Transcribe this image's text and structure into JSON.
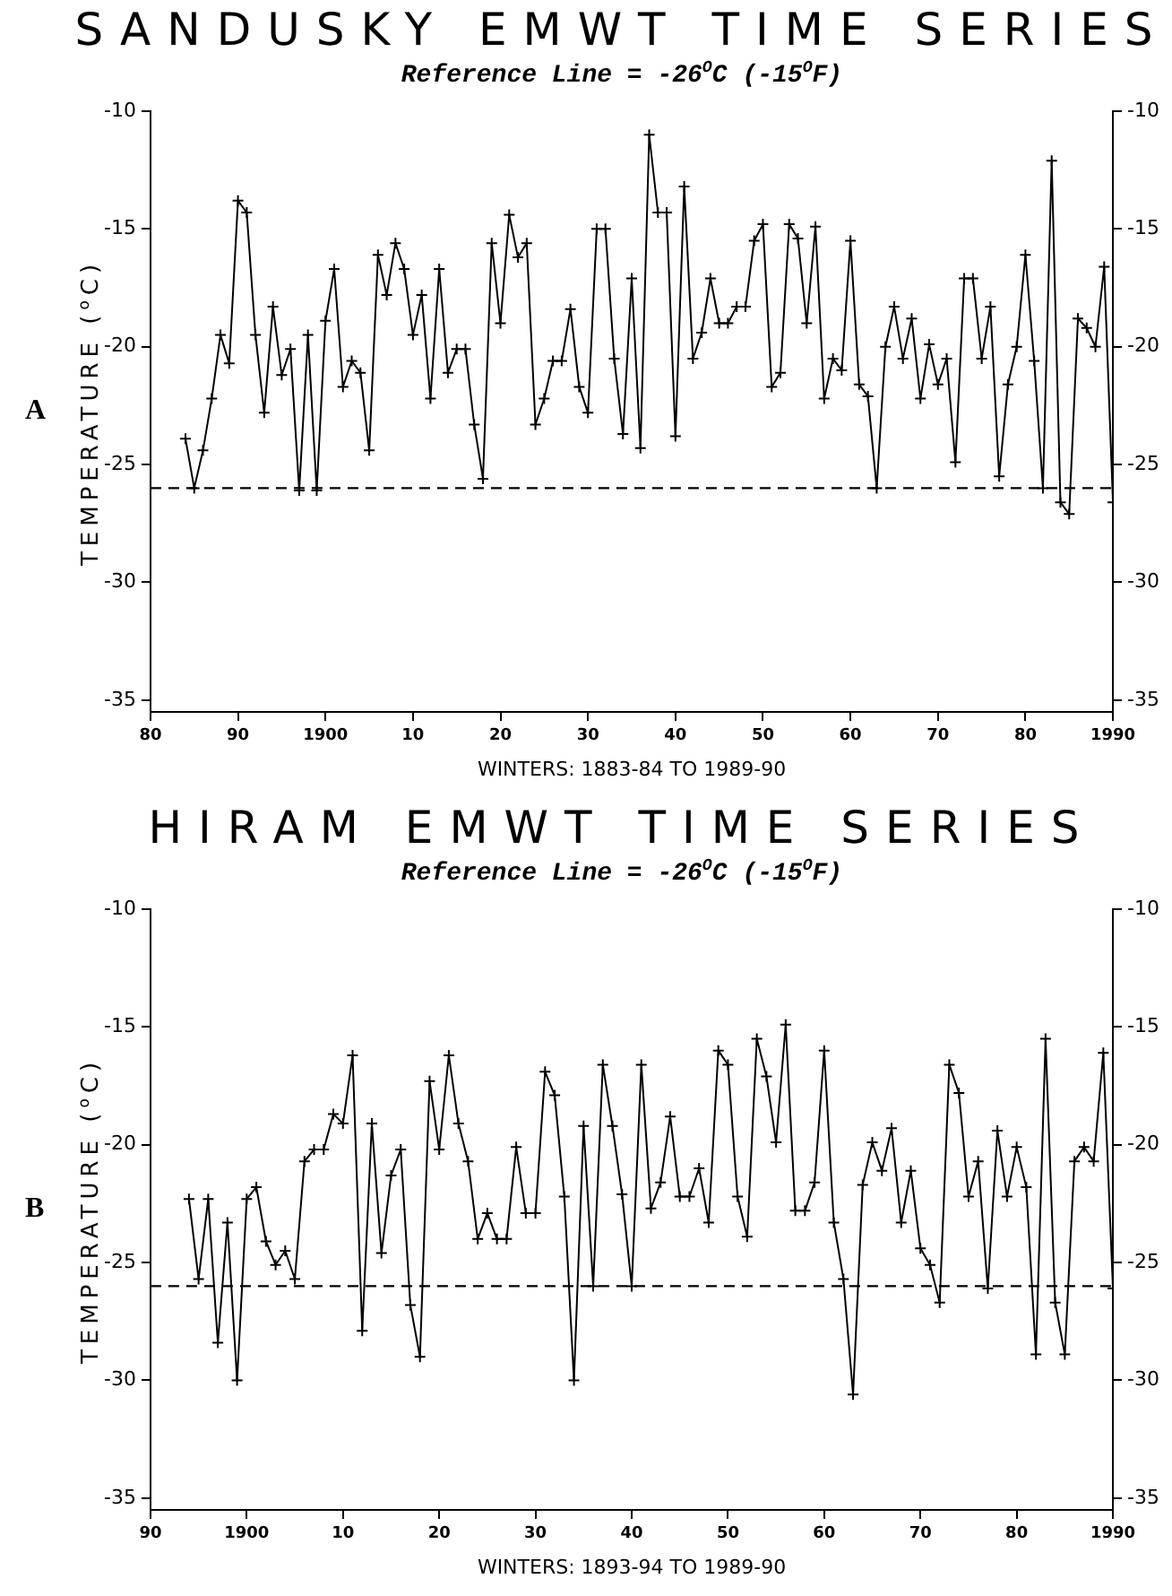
{
  "chart_data": [
    {
      "type": "line",
      "title": "SANDUSKY EMWT TIME SERIES",
      "subtitle": "Reference Line = -26$^{O}$C (-15$^{O}$F)",
      "xlabel": "WINTERS: 1883-84 TO 1989-90",
      "ylabel": "TEMPERATURE ($^{o}$C)",
      "annotations": [
        "A"
      ],
      "marker": "cross",
      "xlim": [
        1880,
        1990
      ],
      "xticks": [
        {
          "value": 1880,
          "label": "80"
        },
        {
          "value": 1890,
          "label": "90"
        },
        {
          "value": 1900,
          "label": "1900"
        },
        {
          "value": 1910,
          "label": "10"
        },
        {
          "value": 1920,
          "label": "20"
        },
        {
          "value": 1930,
          "label": "30"
        },
        {
          "value": 1940,
          "label": "40"
        },
        {
          "value": 1950,
          "label": "50"
        },
        {
          "value": 1960,
          "label": "60"
        },
        {
          "value": 1970,
          "label": "70"
        },
        {
          "value": 1980,
          "label": "80"
        },
        {
          "value": 1990,
          "label": "1990"
        }
      ],
      "ylim": [
        -35.5,
        -10
      ],
      "yticks": [
        -10,
        -15,
        -20,
        -25,
        -30,
        -35
      ],
      "y2lim": [
        -35.5,
        -10
      ],
      "y2ticks": [
        -10,
        -15,
        -20,
        -25,
        -30,
        -35
      ],
      "ref_lines": [
        {
          "axis": "y",
          "value": -26,
          "line_style": "dashed"
        }
      ],
      "x": [
        1884,
        1885,
        1886,
        1887,
        1888,
        1889,
        1890,
        1891,
        1892,
        1893,
        1894,
        1895,
        1896,
        1897,
        1898,
        1899,
        1900,
        1901,
        1902,
        1903,
        1904,
        1905,
        1906,
        1907,
        1908,
        1909,
        1910,
        1911,
        1912,
        1913,
        1914,
        1915,
        1916,
        1917,
        1918,
        1919,
        1920,
        1921,
        1922,
        1923,
        1924,
        1925,
        1926,
        1927,
        1928,
        1929,
        1930,
        1931,
        1932,
        1933,
        1934,
        1935,
        1936,
        1937,
        1938,
        1939,
        1940,
        1941,
        1942,
        1943,
        1944,
        1945,
        1946,
        1947,
        1948,
        1949,
        1950,
        1951,
        1952,
        1953,
        1954,
        1955,
        1956,
        1957,
        1958,
        1959,
        1960,
        1961,
        1962,
        1963,
        1964,
        1965,
        1966,
        1967,
        1968,
        1969,
        1970,
        1971,
        1972,
        1973,
        1974,
        1975,
        1976,
        1977,
        1978,
        1979,
        1980,
        1981,
        1982,
        1983,
        1984,
        1985,
        1986,
        1987,
        1988,
        1989,
        1990
      ],
      "series": [
        {
          "color": "#000000",
          "values": [
            -23.9,
            -26.0,
            -24.4,
            -22.2,
            -19.5,
            -20.7,
            -13.8,
            -14.3,
            -19.5,
            -22.8,
            -18.3,
            -21.2,
            -20.1,
            -26.1,
            -19.5,
            -26.1,
            -18.9,
            -16.7,
            -21.7,
            -20.6,
            -21.1,
            -24.4,
            -16.1,
            -17.8,
            -15.6,
            -16.7,
            -19.5,
            -17.8,
            -22.2,
            -16.7,
            -21.1,
            -20.1,
            -20.1,
            -23.3,
            -25.6,
            -15.6,
            -19.0,
            -14.4,
            -16.2,
            -15.6,
            -23.3,
            -22.2,
            -20.6,
            -20.6,
            -18.4,
            -21.7,
            -22.8,
            -15.0,
            -15.0,
            -20.5,
            -23.7,
            -17.1,
            -24.3,
            -11.0,
            -14.3,
            -14.3,
            -23.8,
            -13.2,
            -20.5,
            -19.4,
            -17.1,
            -19.0,
            -19.0,
            -18.3,
            -18.3,
            -15.5,
            -14.8,
            -21.7,
            -21.1,
            -14.8,
            -15.4,
            -19.0,
            -14.9,
            -22.2,
            -20.5,
            -21.0,
            -15.5,
            -21.6,
            -22.1,
            -26.0,
            -20.0,
            -18.3,
            -20.5,
            -18.8,
            -22.2,
            -19.9,
            -21.6,
            -20.5,
            -24.9,
            -17.1,
            -17.1,
            -20.5,
            -18.3,
            -25.5,
            -21.6,
            -20.0,
            -16.1,
            -20.6,
            -26.0,
            -12.1,
            -26.6,
            -27.1,
            -18.8,
            -19.2,
            -20.0,
            -16.6,
            -26.6
          ]
        }
      ]
    },
    {
      "type": "line",
      "title": "HIRAM EMWT TIME SERIES",
      "subtitle": "Reference Line = -26$^{O}$C (-15$^{O}$F)",
      "xlabel": "WINTERS: 1893-94 TO 1989-90",
      "ylabel": "TEMPERATURE ($^{o}$C)",
      "annotations": [
        "B"
      ],
      "marker": "cross",
      "xlim": [
        1890,
        1990
      ],
      "xticks": [
        {
          "value": 1890,
          "label": "90"
        },
        {
          "value": 1900,
          "label": "1900"
        },
        {
          "value": 1910,
          "label": "10"
        },
        {
          "value": 1920,
          "label": "20"
        },
        {
          "value": 1930,
          "label": "30"
        },
        {
          "value": 1940,
          "label": "40"
        },
        {
          "value": 1950,
          "label": "50"
        },
        {
          "value": 1960,
          "label": "60"
        },
        {
          "value": 1970,
          "label": "70"
        },
        {
          "value": 1980,
          "label": "80"
        },
        {
          "value": 1990,
          "label": "1990"
        }
      ],
      "ylim": [
        -35.5,
        -10
      ],
      "yticks": [
        -10,
        -15,
        -20,
        -25,
        -30,
        -35
      ],
      "y2lim": [
        -35.5,
        -10
      ],
      "y2ticks": [
        -10,
        -15,
        -20,
        -25,
        -30,
        -35
      ],
      "ref_lines": [
        {
          "axis": "y",
          "value": -26,
          "line_style": "dashed"
        }
      ],
      "x": [
        1894,
        1895,
        1896,
        1897,
        1898,
        1899,
        1900,
        1901,
        1902,
        1903,
        1904,
        1905,
        1906,
        1907,
        1908,
        1909,
        1910,
        1911,
        1912,
        1913,
        1914,
        1915,
        1916,
        1917,
        1918,
        1919,
        1920,
        1921,
        1922,
        1923,
        1924,
        1925,
        1926,
        1927,
        1928,
        1929,
        1930,
        1931,
        1932,
        1933,
        1934,
        1935,
        1936,
        1937,
        1938,
        1939,
        1940,
        1941,
        1942,
        1943,
        1944,
        1945,
        1946,
        1947,
        1948,
        1949,
        1950,
        1951,
        1952,
        1953,
        1954,
        1955,
        1956,
        1957,
        1958,
        1959,
        1960,
        1961,
        1962,
        1963,
        1964,
        1965,
        1966,
        1967,
        1968,
        1969,
        1970,
        1971,
        1972,
        1973,
        1974,
        1975,
        1976,
        1977,
        1978,
        1979,
        1980,
        1981,
        1982,
        1983,
        1984,
        1985,
        1986,
        1987,
        1988,
        1989,
        1990
      ],
      "series": [
        {
          "color": "#000000",
          "values": [
            -22.3,
            -25.7,
            -22.3,
            -28.4,
            -23.3,
            -30.0,
            -22.3,
            -21.8,
            -24.1,
            -25.1,
            -24.5,
            -25.7,
            -20.7,
            -20.2,
            -20.2,
            -18.7,
            -19.1,
            -16.2,
            -27.9,
            -19.1,
            -24.6,
            -21.3,
            -20.2,
            -26.8,
            -29.0,
            -17.3,
            -20.2,
            -16.2,
            -19.1,
            -20.7,
            -24.0,
            -22.9,
            -24.0,
            -24.0,
            -20.1,
            -22.9,
            -22.9,
            -16.9,
            -17.9,
            -22.2,
            -30.0,
            -19.2,
            -26.0,
            -16.6,
            -19.2,
            -22.1,
            -26.0,
            -16.6,
            -22.7,
            -21.6,
            -18.8,
            -22.2,
            -22.2,
            -21.0,
            -23.3,
            -16.0,
            -16.6,
            -22.2,
            -23.9,
            -15.5,
            -17.1,
            -19.9,
            -14.9,
            -22.8,
            -22.8,
            -21.6,
            -16.0,
            -23.3,
            -25.7,
            -30.6,
            -21.7,
            -19.9,
            -21.1,
            -19.3,
            -23.3,
            -21.1,
            -24.4,
            -25.1,
            -26.7,
            -16.6,
            -17.8,
            -22.2,
            -20.7,
            -26.1,
            -19.4,
            -22.2,
            -20.1,
            -21.8,
            -28.9,
            -15.5,
            -26.7,
            -28.9,
            -20.7,
            -20.1,
            -20.7,
            -16.1,
            -26.1
          ]
        }
      ]
    }
  ]
}
